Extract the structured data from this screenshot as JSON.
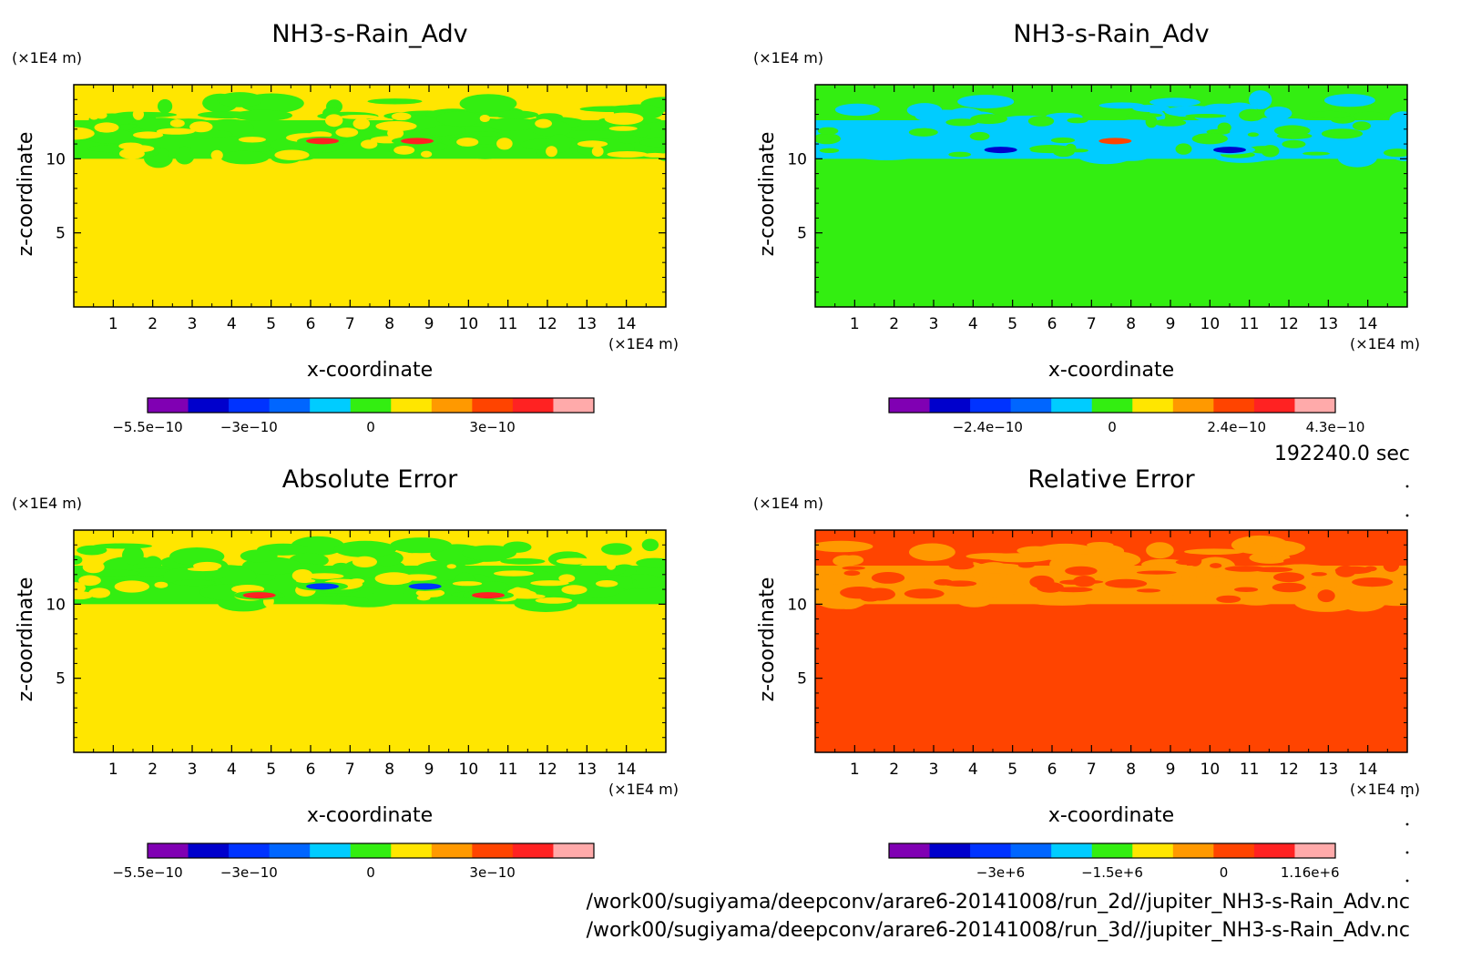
{
  "time_label": "192240.0 sec",
  "files": [
    "/work00/sugiyama/deepconv/arare6-20141008/run_2d//jupiter_NH3-s-Rain_Adv.nc",
    "/work00/sugiyama/deepconv/arare6-20141008/run_3d//jupiter_NH3-s-Rain_Adv.nc"
  ],
  "colors": {
    "yellow": "#ffe600",
    "green": "#33ee11",
    "cyan": "#00ccff",
    "blue": "#0066ff",
    "deep_blue": "#0033ff",
    "navy": "#0000cc",
    "purple": "#8000b3",
    "orange": "#ff9900",
    "red_orange": "#ff4400",
    "red": "#ff2222",
    "pink": "#ffaaaa"
  },
  "chart_data": [
    {
      "type": "heatmap",
      "title": "NH3-s-Rain_Adv",
      "xlabel": "x-coordinate",
      "ylabel": "z-coordinate",
      "x_unit": "(×1E4 m)",
      "y_unit": "(×1E4 m)",
      "xlim": [
        0,
        15
      ],
      "ylim": [
        0,
        15
      ],
      "x_ticks": [
        1,
        2,
        3,
        4,
        5,
        6,
        7,
        8,
        9,
        10,
        11,
        12,
        13,
        14
      ],
      "y_ticks": [
        5,
        10
      ],
      "background_color": "#ffe600",
      "layer_color": "#33ee11",
      "layer_zlim": [
        10,
        14
      ],
      "features": [
        {
          "x": 6.3,
          "z": 11.2,
          "color": "#ff2222"
        },
        {
          "x": 8.7,
          "z": 11.2,
          "color": "#ff2222"
        }
      ],
      "colorbar": {
        "colors": [
          "#8000b3",
          "#0000cc",
          "#0033ff",
          "#0066ff",
          "#00ccff",
          "#33ee11",
          "#ffe600",
          "#ff9900",
          "#ff4400",
          "#ff2222",
          "#ffaaaa"
        ],
        "range": [
          -5.5e-10,
          5.5e-10
        ],
        "tick_values": [
          -5.5e-10,
          -3e-10,
          0,
          3e-10
        ],
        "tick_labels": [
          "−5.5e−10",
          "−3e−10",
          "0",
          "3e−10"
        ]
      }
    },
    {
      "type": "heatmap",
      "title": "NH3-s-Rain_Adv",
      "xlabel": "x-coordinate",
      "ylabel": "z-coordinate",
      "x_unit": "(×1E4 m)",
      "y_unit": "(×1E4 m)",
      "xlim": [
        0,
        15
      ],
      "ylim": [
        0,
        15
      ],
      "x_ticks": [
        1,
        2,
        3,
        4,
        5,
        6,
        7,
        8,
        9,
        10,
        11,
        12,
        13,
        14
      ],
      "y_ticks": [
        5,
        10
      ],
      "background_color": "#33ee11",
      "layer_color": "#00ccff",
      "layer_zlim": [
        10,
        14
      ],
      "features": [
        {
          "x": 4.7,
          "z": 10.6,
          "color": "#0000cc"
        },
        {
          "x": 10.5,
          "z": 10.6,
          "color": "#0000cc"
        },
        {
          "x": 7.6,
          "z": 11.2,
          "color": "#ff4400"
        }
      ],
      "colorbar": {
        "colors": [
          "#8000b3",
          "#0000cc",
          "#0033ff",
          "#0066ff",
          "#00ccff",
          "#33ee11",
          "#ffe600",
          "#ff9900",
          "#ff4400",
          "#ff2222",
          "#ffaaaa"
        ],
        "range": [
          -4.3e-10,
          4.3e-10
        ],
        "tick_values": [
          -2.4e-10,
          0,
          2.4e-10,
          4.3e-10
        ],
        "tick_labels": [
          "−2.4e−10",
          "0",
          "2.4e−10",
          "4.3e−10"
        ]
      }
    },
    {
      "type": "heatmap",
      "title": "Absolute Error",
      "xlabel": "x-coordinate",
      "ylabel": "z-coordinate",
      "x_unit": "(×1E4 m)",
      "y_unit": "(×1E4 m)",
      "xlim": [
        0,
        15
      ],
      "ylim": [
        0,
        15
      ],
      "x_ticks": [
        1,
        2,
        3,
        4,
        5,
        6,
        7,
        8,
        9,
        10,
        11,
        12,
        13,
        14
      ],
      "y_ticks": [
        5,
        10
      ],
      "background_color": "#ffe600",
      "layer_color": "#33ee11",
      "layer_zlim": [
        10,
        14
      ],
      "features": [
        {
          "x": 4.7,
          "z": 10.6,
          "color": "#ff2222"
        },
        {
          "x": 10.5,
          "z": 10.6,
          "color": "#ff2222"
        },
        {
          "x": 6.3,
          "z": 11.2,
          "color": "#0033ff"
        },
        {
          "x": 8.9,
          "z": 11.2,
          "color": "#0033ff"
        }
      ],
      "colorbar": {
        "colors": [
          "#8000b3",
          "#0000cc",
          "#0033ff",
          "#0066ff",
          "#00ccff",
          "#33ee11",
          "#ffe600",
          "#ff9900",
          "#ff4400",
          "#ff2222",
          "#ffaaaa"
        ],
        "range": [
          -5.5e-10,
          5.5e-10
        ],
        "tick_values": [
          -5.5e-10,
          -3e-10,
          0,
          3e-10
        ],
        "tick_labels": [
          "−5.5e−10",
          "−3e−10",
          "0",
          "3e−10"
        ]
      }
    },
    {
      "type": "heatmap",
      "title": "Relative Error",
      "xlabel": "x-coordinate",
      "ylabel": "z-coordinate",
      "x_unit": "(×1E4 m)",
      "y_unit": "(×1E4 m)",
      "xlim": [
        0,
        15
      ],
      "ylim": [
        0,
        15
      ],
      "x_ticks": [
        1,
        2,
        3,
        4,
        5,
        6,
        7,
        8,
        9,
        10,
        11,
        12,
        13,
        14
      ],
      "y_ticks": [
        5,
        10
      ],
      "background_color": "#ff4400",
      "layer_color": "#ff9900",
      "layer_zlim": [
        10,
        14
      ],
      "features": [],
      "colorbar": {
        "colors": [
          "#8000b3",
          "#0000cc",
          "#0033ff",
          "#0066ff",
          "#00ccff",
          "#33ee11",
          "#ffe600",
          "#ff9900",
          "#ff4400",
          "#ff2222",
          "#ffaaaa"
        ],
        "range": [
          -4500000.0,
          1500000.0
        ],
        "tick_values": [
          -3000000.0,
          -1500000.0,
          0,
          1160000.0
        ],
        "tick_labels": [
          "−3e+6",
          "−1.5e+6",
          "0",
          "1.16e+6"
        ]
      }
    }
  ]
}
